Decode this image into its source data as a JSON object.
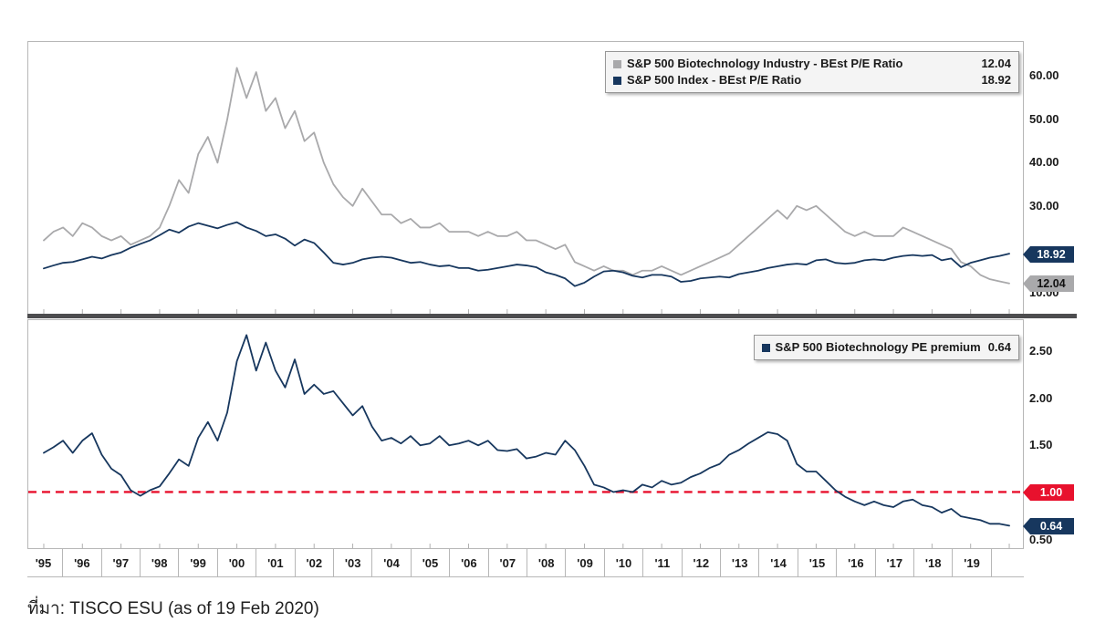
{
  "footer": {
    "source": "ที่มา: TISCO ESU (as of 19 Feb 2020)"
  },
  "colors": {
    "biotech_line": "#a9a9ab",
    "index_line": "#17375e",
    "premium_line": "#17375e",
    "reference_red": "#e8112d",
    "legend_bg": "#f4f4f4"
  },
  "x_axis": {
    "labels": [
      "'95",
      "'96",
      "'97",
      "'98",
      "'99",
      "'00",
      "'01",
      "'02",
      "'03",
      "'04",
      "'05",
      "'06",
      "'07",
      "'08",
      "'09",
      "'10",
      "'11",
      "'12",
      "'13",
      "'14",
      "'15",
      "'16",
      "'17",
      "'18",
      "'19"
    ]
  },
  "chart_data": [
    {
      "type": "line",
      "panel": "top",
      "x_start": 1995,
      "x_step": 0.25,
      "x_range": [
        1995,
        2020.25
      ],
      "ylim": [
        5,
        68
      ],
      "grid": false,
      "legend_position": "top-right",
      "yticks": [
        {
          "v": 60,
          "label": "60.00"
        },
        {
          "v": 50,
          "label": "50.00"
        },
        {
          "v": 40,
          "label": "40.00"
        },
        {
          "v": 30,
          "label": "30.00"
        }
      ],
      "hidden_labels": [
        {
          "v": 10,
          "label": "10.00"
        }
      ],
      "badges": [
        {
          "text": "18.92",
          "v": 18.92,
          "bg": "#17375e",
          "fg": "#ffffff"
        },
        {
          "text": "12.04",
          "v": 12.04,
          "bg": "#a9a9ab",
          "fg": "#111111"
        }
      ],
      "legend": [
        {
          "swatch": "#a9a9ab",
          "label": "S&P 500 Biotechnology Industry - BEst P/E Ratio",
          "value": "12.04"
        },
        {
          "swatch": "#17375e",
          "label": "S&P 500 Index - BEst P/E Ratio",
          "value": "18.92"
        }
      ],
      "series": [
        {
          "name": "S&P 500 Biotechnology Industry - BEst P/E Ratio",
          "color": "#a9a9ab",
          "last": 12.04,
          "values": [
            22,
            24,
            25,
            23,
            26,
            25,
            23,
            22,
            23,
            21,
            22,
            23,
            25,
            30,
            36,
            33,
            42,
            46,
            40,
            50,
            62,
            55,
            61,
            52,
            55,
            48,
            52,
            45,
            47,
            40,
            35,
            32,
            30,
            34,
            31,
            28,
            28,
            26,
            27,
            25,
            25,
            26,
            24,
            24,
            24,
            23,
            24,
            23,
            23,
            24,
            22,
            22,
            21,
            20,
            21,
            17,
            16,
            15,
            16,
            15,
            15,
            14,
            15,
            15,
            16,
            15,
            14,
            15,
            16,
            17,
            18,
            19,
            21,
            23,
            25,
            27,
            29,
            27,
            30,
            29,
            30,
            28,
            26,
            24,
            23,
            24,
            23,
            23,
            23,
            25,
            24,
            23,
            22,
            21,
            20,
            17,
            16,
            14,
            13,
            12.5,
            12.04
          ]
        },
        {
          "name": "S&P 500 Index - BEst P/E Ratio",
          "color": "#17375e",
          "last": 18.92,
          "values": [
            15.5,
            16.2,
            16.8,
            17,
            17.6,
            18.2,
            17.8,
            18.6,
            19.2,
            20.3,
            21.2,
            22,
            23.2,
            24.5,
            23.8,
            25.2,
            26,
            25.4,
            24.8,
            25.6,
            26.2,
            25,
            24.2,
            23,
            23.4,
            22.4,
            20.8,
            22.2,
            21.4,
            19.2,
            16.8,
            16.4,
            16.8,
            17.6,
            18,
            18.2,
            18,
            17.4,
            16.8,
            17,
            16.4,
            16,
            16.2,
            15.6,
            15.6,
            15,
            15.2,
            15.6,
            16,
            16.4,
            16.2,
            15.8,
            14.6,
            14,
            13.2,
            11.4,
            12.2,
            13.6,
            14.8,
            15,
            14.6,
            13.8,
            13.4,
            14,
            14,
            13.6,
            12.4,
            12.6,
            13.2,
            13.4,
            13.6,
            13.4,
            14.2,
            14.6,
            15,
            15.6,
            16,
            16.4,
            16.6,
            16.4,
            17.4,
            17.6,
            16.8,
            16.6,
            16.8,
            17.4,
            17.6,
            17.4,
            18,
            18.4,
            18.6,
            18.4,
            18.6,
            17.4,
            17.8,
            15.8,
            16.8,
            17.4,
            18,
            18.4,
            18.92
          ]
        }
      ]
    },
    {
      "type": "line",
      "panel": "bottom",
      "x_start": 1995,
      "x_step": 0.25,
      "x_range": [
        1995,
        2020.25
      ],
      "ylim": [
        0.4,
        2.84
      ],
      "grid": false,
      "legend_position": "top-right",
      "yticks": [
        {
          "v": 2.5,
          "label": "2.50"
        },
        {
          "v": 2.0,
          "label": "2.00"
        },
        {
          "v": 1.5,
          "label": "1.50"
        },
        {
          "v": 0.5,
          "label": "0.50"
        }
      ],
      "hidden_labels": [],
      "reference_line": {
        "v": 1.0,
        "label": "1.00",
        "color": "#e8112d",
        "style": "dashed"
      },
      "badges": [
        {
          "text": "1.00",
          "v": 1.0,
          "bg": "#e8112d",
          "fg": "#ffffff"
        },
        {
          "text": "0.64",
          "v": 0.64,
          "bg": "#17375e",
          "fg": "#ffffff"
        }
      ],
      "legend": [
        {
          "swatch": "#17375e",
          "label": "S&P 500 Biotechnology PE premium",
          "value": "0.64"
        }
      ],
      "series": [
        {
          "name": "S&P 500 Biotechnology PE premium",
          "color": "#17375e",
          "last": 0.64,
          "values": [
            1.42,
            1.48,
            1.55,
            1.42,
            1.55,
            1.63,
            1.4,
            1.25,
            1.18,
            1.02,
            0.96,
            1.02,
            1.06,
            1.2,
            1.35,
            1.28,
            1.58,
            1.75,
            1.55,
            1.85,
            2.4,
            2.68,
            2.3,
            2.6,
            2.3,
            2.12,
            2.42,
            2.05,
            2.15,
            2.05,
            2.08,
            1.95,
            1.82,
            1.92,
            1.7,
            1.55,
            1.58,
            1.52,
            1.6,
            1.5,
            1.52,
            1.6,
            1.5,
            1.52,
            1.55,
            1.5,
            1.55,
            1.45,
            1.44,
            1.46,
            1.36,
            1.38,
            1.42,
            1.4,
            1.55,
            1.45,
            1.28,
            1.08,
            1.05,
            1,
            1.02,
            1,
            1.08,
            1.05,
            1.12,
            1.08,
            1.1,
            1.16,
            1.2,
            1.26,
            1.3,
            1.4,
            1.45,
            1.52,
            1.58,
            1.64,
            1.62,
            1.55,
            1.3,
            1.22,
            1.22,
            1.12,
            1.02,
            0.95,
            0.9,
            0.86,
            0.9,
            0.86,
            0.84,
            0.9,
            0.92,
            0.86,
            0.84,
            0.78,
            0.82,
            0.74,
            0.72,
            0.7,
            0.66,
            0.66,
            0.64
          ]
        }
      ]
    }
  ]
}
